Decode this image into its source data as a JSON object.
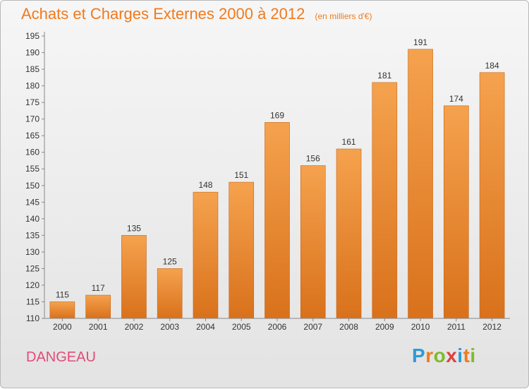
{
  "header": {
    "title": "Achats et Charges Externes 2000 à 2012",
    "subtitle": "(en milliers d'€)"
  },
  "footer": {
    "commune": "DANGEAU",
    "logo_text": "Proxiti",
    "logo_colors": [
      "#2e9bd6",
      "#ef7b1c",
      "#7dbb2c",
      "#e23f3f",
      "#2e9bd6",
      "#ef7b1c",
      "#7dbb2c"
    ]
  },
  "colors": {
    "bar_top": "#f5a24e",
    "bar_bottom": "#d9711b",
    "title": "#f07a1d",
    "commune": "#e34a78"
  },
  "chart_data": {
    "type": "bar",
    "categories": [
      "2000",
      "2001",
      "2002",
      "2003",
      "2004",
      "2005",
      "2006",
      "2007",
      "2008",
      "2009",
      "2010",
      "2011",
      "2012"
    ],
    "values": [
      115,
      117,
      135,
      125,
      148,
      151,
      169,
      156,
      161,
      181,
      191,
      174,
      184
    ],
    "ylim": [
      110,
      195
    ],
    "yticks": [
      110,
      115,
      120,
      125,
      130,
      135,
      140,
      145,
      150,
      155,
      160,
      165,
      170,
      175,
      180,
      185,
      190,
      195
    ],
    "grid": false
  }
}
